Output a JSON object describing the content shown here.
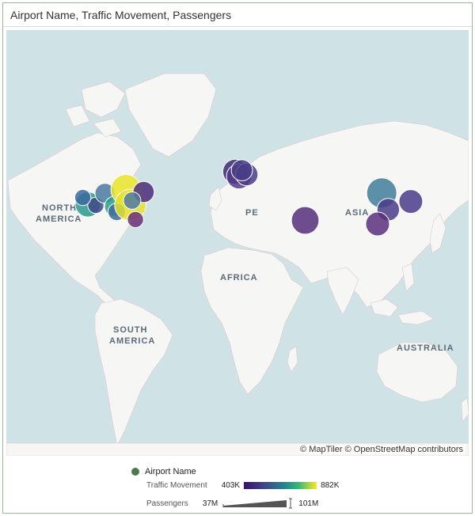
{
  "title": "Airport Name, Traffic Movement, Passengers",
  "map": {
    "labels": {
      "north_america_1": "NORTH",
      "north_america_2": "AMERICA",
      "europe": "PE",
      "asia": "ASIA",
      "africa": "AFRICA",
      "south_america_1": "SOUTH",
      "south_america_2": "AMERICA",
      "australia": "AUSTRALIA"
    },
    "attribution": "© MapTiler © OpenStreetMap contributors",
    "water_color": "#cfe2e5",
    "land_color": "#f6f6f4"
  },
  "legend": {
    "series_name": "Airport Name",
    "series_color": "#4b7a4b",
    "traffic_label": "Traffic Movement",
    "traffic_min": "403K",
    "traffic_max": "882K",
    "passengers_label": "Passengers",
    "passengers_min": "37M",
    "passengers_max": "101M"
  },
  "chart_data": {
    "type": "scatter",
    "title": "Airport Name, Traffic Movement, Passengers",
    "color_scale": {
      "field": "Traffic Movement",
      "min_label": "403K",
      "max_label": "882K",
      "palette": [
        "#3b0f6b",
        "#3e4a89",
        "#26828e",
        "#35b779",
        "#fde725"
      ]
    },
    "size_scale": {
      "field": "Passengers",
      "min_label": "37M",
      "max_label": "101M"
    },
    "points": [
      {
        "lon": -118.4,
        "lat": 33.9,
        "color": "#2a9a8c",
        "size": 0.55
      },
      {
        "lon": -112.0,
        "lat": 33.4,
        "color": "#3e4a89",
        "size": 0.2
      },
      {
        "lon": -104.7,
        "lat": 39.9,
        "color": "#4a7aa0",
        "size": 0.35
      },
      {
        "lon": -97.0,
        "lat": 32.9,
        "color": "#26a08a",
        "size": 0.35
      },
      {
        "lon": -95.3,
        "lat": 29.9,
        "color": "#3d6d9a",
        "size": 0.25
      },
      {
        "lon": -87.9,
        "lat": 41.9,
        "color": "#e9e42a",
        "size": 0.75
      },
      {
        "lon": -84.4,
        "lat": 33.6,
        "color": "#e5e22e",
        "size": 0.8
      },
      {
        "lon": -80.3,
        "lat": 25.8,
        "color": "#6a2f79",
        "size": 0.2
      },
      {
        "lon": -73.8,
        "lat": 40.6,
        "color": "#4b2c7a",
        "size": 0.4
      },
      {
        "lon": -83.0,
        "lat": 36.0,
        "color": "#4f7aa0",
        "size": 0.25
      },
      {
        "lon": -122.4,
        "lat": 37.6,
        "color": "#3a6aa0",
        "size": 0.2
      },
      {
        "lon": -0.5,
        "lat": 51.5,
        "color": "#3e2a78",
        "size": 0.55
      },
      {
        "lon": 2.5,
        "lat": 49.0,
        "color": "#523b87",
        "size": 0.55
      },
      {
        "lon": 8.6,
        "lat": 50.0,
        "color": "#4b3c8a",
        "size": 0.45
      },
      {
        "lon": 4.8,
        "lat": 52.3,
        "color": "#4a3d88",
        "size": 0.4
      },
      {
        "lon": 55.4,
        "lat": 25.3,
        "color": "#562f7d",
        "size": 0.65
      },
      {
        "lon": 116.6,
        "lat": 40.1,
        "color": "#3f7e9a",
        "size": 0.75
      },
      {
        "lon": 121.8,
        "lat": 31.1,
        "color": "#4b3c8a",
        "size": 0.45
      },
      {
        "lon": 113.3,
        "lat": 23.4,
        "color": "#5a2f7d",
        "size": 0.5
      },
      {
        "lon": 139.8,
        "lat": 35.5,
        "color": "#4b3c8a",
        "size": 0.5
      }
    ]
  }
}
